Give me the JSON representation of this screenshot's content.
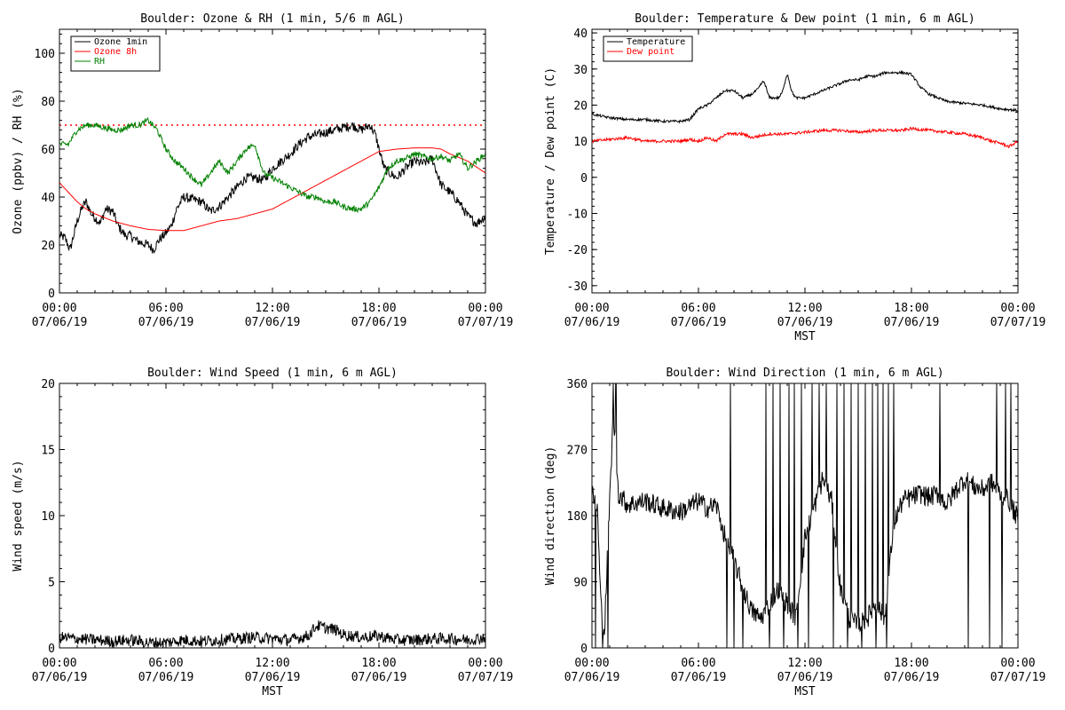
{
  "chart_data": [
    {
      "type": "line",
      "title": "Boulder: Ozone & RH (1 min, 5/6 m AGL)",
      "ylabel": "Ozone (ppbv) / RH (%)",
      "xlabel": "",
      "ylim": [
        0,
        110
      ],
      "yticks": [
        0,
        20,
        40,
        60,
        80,
        100
      ],
      "x_tick_labels": [
        {
          "time": "00:00",
          "date": "07/06/19"
        },
        {
          "time": "06:00",
          "date": "07/06/19"
        },
        {
          "time": "12:00",
          "date": "07/06/19"
        },
        {
          "time": "18:00",
          "date": "07/06/19"
        },
        {
          "time": "00:00",
          "date": "07/07/19"
        }
      ],
      "x_unit": "hours",
      "xlim": [
        0,
        24
      ],
      "legend": {
        "placement": "top-left",
        "boxed": true
      },
      "reference_lines": [
        {
          "y": 70,
          "color": "#ff0000",
          "style": "dotted"
        }
      ],
      "series": [
        {
          "name": "Ozone 1min",
          "color": "#000000",
          "noise": 2.0,
          "x": [
            0,
            0.3,
            0.6,
            1.0,
            1.3,
            1.5,
            1.8,
            2.3,
            2.6,
            3.0,
            3.3,
            3.7,
            4.0,
            4.3,
            4.6,
            5.0,
            5.3,
            5.6,
            6.0,
            6.3,
            6.6,
            7.0,
            7.5,
            8.0,
            8.5,
            9.0,
            9.5,
            10,
            10.5,
            11,
            11.5,
            12,
            12.5,
            13,
            13.5,
            14,
            14.5,
            15,
            15.5,
            16,
            16.5,
            17,
            17.5,
            17.8,
            18.0,
            18.3,
            18.6,
            19,
            19.5,
            20,
            20.5,
            21,
            21.5,
            22,
            22.5,
            23,
            23.5,
            24
          ],
          "y": [
            24,
            23,
            18,
            30,
            36,
            38,
            33,
            29,
            35,
            34,
            28,
            24,
            24,
            22,
            21,
            20,
            18,
            22,
            25,
            28,
            35,
            40,
            39,
            38,
            34,
            36,
            40,
            44,
            48,
            48,
            47,
            52,
            55,
            58,
            62,
            65,
            66,
            67,
            68,
            69,
            70,
            68,
            70,
            66,
            60,
            52,
            50,
            48,
            52,
            55,
            54,
            56,
            45,
            42,
            38,
            32,
            29,
            32
          ]
        },
        {
          "name": "Ozone 8h",
          "color": "#ff0000",
          "noise": 0,
          "x": [
            0,
            0.5,
            1,
            1.5,
            2,
            3,
            4,
            5,
            6,
            7,
            8,
            9,
            10,
            11,
            12,
            13,
            14,
            15,
            16,
            17,
            18,
            19,
            20,
            21,
            21.5,
            22,
            23,
            24
          ],
          "y": [
            46,
            42,
            38,
            35,
            33,
            30,
            28,
            26.5,
            26,
            26,
            28,
            30,
            31,
            33,
            35,
            39,
            43,
            47,
            51,
            55,
            59,
            60,
            60.5,
            60.5,
            60,
            58,
            55,
            50
          ]
        },
        {
          "name": "RH",
          "color": "#008000",
          "noise": 1.2,
          "x": [
            0,
            0.5,
            1,
            1.5,
            2,
            2.5,
            3,
            3.5,
            4,
            4.5,
            5,
            5.5,
            6,
            6.5,
            7,
            7.5,
            8,
            8.5,
            9,
            9.5,
            10,
            10.5,
            11,
            11.5,
            12,
            12.5,
            13,
            13.5,
            14,
            14.5,
            15,
            15.5,
            16,
            16.5,
            17,
            17.5,
            18,
            18.5,
            19,
            19.5,
            20,
            20.5,
            21,
            21.5,
            22,
            22.5,
            23,
            23.5,
            24
          ],
          "y": [
            62,
            62,
            68,
            70,
            70,
            69,
            68,
            68,
            70,
            70,
            72,
            68,
            60,
            55,
            52,
            48,
            45,
            50,
            55,
            50,
            55,
            60,
            62,
            50,
            48,
            46,
            44,
            42,
            40,
            40,
            38,
            38,
            36,
            35,
            35,
            38,
            44,
            52,
            55,
            56,
            58,
            57,
            56,
            57,
            55,
            58,
            52,
            55,
            58
          ]
        }
      ]
    },
    {
      "type": "line",
      "title": "Boulder: Temperature & Dew point (1 min, 6 m AGL)",
      "ylabel": "Temperature / Dew point (C)",
      "xlabel": "MST",
      "ylim": [
        -32,
        41
      ],
      "yticks": [
        -30,
        -20,
        -10,
        0,
        10,
        20,
        30,
        40
      ],
      "x_tick_labels": [
        {
          "time": "00:00",
          "date": "07/06/19"
        },
        {
          "time": "06:00",
          "date": "07/06/19"
        },
        {
          "time": "12:00",
          "date": "07/06/19"
        },
        {
          "time": "18:00",
          "date": "07/06/19"
        },
        {
          "time": "00:00",
          "date": "07/07/19"
        }
      ],
      "x_unit": "hours",
      "xlim": [
        0,
        24
      ],
      "legend": {
        "placement": "top-left",
        "boxed": true
      },
      "series": [
        {
          "name": "Temperature",
          "color": "#000000",
          "noise": 0.35,
          "x": [
            0,
            1,
            2,
            3,
            4,
            5,
            5.5,
            6,
            6.5,
            7,
            7.5,
            8,
            8.5,
            9,
            9.5,
            10,
            10.5,
            11,
            11.5,
            12,
            12.5,
            13,
            13.5,
            14,
            14.5,
            15,
            15.5,
            16,
            16.5,
            17,
            17.5,
            18,
            18.5,
            19,
            19.5,
            20,
            21,
            22,
            23,
            24
          ],
          "y": [
            17.5,
            16.5,
            16,
            16,
            15.5,
            15.5,
            16,
            19,
            20,
            22,
            24,
            24,
            22,
            23,
            25,
            22,
            22,
            25,
            22,
            22,
            23,
            24,
            25,
            26,
            27,
            27,
            28,
            28,
            29,
            29,
            29,
            28.5,
            25,
            23,
            22,
            21,
            20.5,
            20,
            19,
            18.5
          ],
          "bumps": [
            {
              "x": 9.7,
              "dy": 2.5
            },
            {
              "x": 11.0,
              "dy": 3.5
            }
          ]
        },
        {
          "name": "Dew point",
          "color": "#ff0000",
          "noise": 0.4,
          "x": [
            0,
            1,
            2,
            3,
            4,
            5,
            5.5,
            6,
            6.5,
            7,
            7.5,
            8,
            8.5,
            9,
            10,
            11,
            12,
            13,
            14,
            15,
            16,
            17,
            17.5,
            18,
            19,
            20,
            21,
            22,
            22.5,
            23,
            23.5,
            24
          ],
          "y": [
            10,
            10.5,
            11,
            10,
            10,
            10,
            10.5,
            10,
            11,
            10,
            12,
            12,
            12,
            11,
            12,
            12,
            12.5,
            13,
            13,
            12.5,
            13,
            13,
            13,
            13.5,
            13,
            12.5,
            12,
            11,
            10,
            9.5,
            8.5,
            10
          ]
        }
      ]
    },
    {
      "type": "line",
      "title": "Boulder: Wind Speed (1 min, 6 m AGL)",
      "ylabel": "Wind speed (m/s)",
      "xlabel": "MST",
      "ylim": [
        0,
        20
      ],
      "yticks": [
        0,
        5,
        10,
        15,
        20
      ],
      "x_tick_labels": [
        {
          "time": "00:00",
          "date": "07/06/19"
        },
        {
          "time": "06:00",
          "date": "07/06/19"
        },
        {
          "time": "12:00",
          "date": "07/06/19"
        },
        {
          "time": "18:00",
          "date": "07/06/19"
        },
        {
          "time": "00:00",
          "date": "07/07/19"
        }
      ],
      "x_unit": "hours",
      "xlim": [
        0,
        24
      ],
      "series": [
        {
          "name": "",
          "color": "#000000",
          "noise": 0.45,
          "floor": 0,
          "x": [
            0,
            1,
            2,
            3,
            4,
            5,
            6,
            7,
            8,
            9,
            10,
            11,
            12,
            13,
            14,
            14.5,
            15,
            15.5,
            16,
            17,
            18,
            19,
            20,
            21,
            22,
            23,
            24
          ],
          "y": [
            0.8,
            0.7,
            0.6,
            0.5,
            0.6,
            0.4,
            0.4,
            0.6,
            0.5,
            0.6,
            0.7,
            0.8,
            0.7,
            0.6,
            0.9,
            1.7,
            1.5,
            1.4,
            1.0,
            0.8,
            0.9,
            0.6,
            0.6,
            0.7,
            0.7,
            0.6,
            0.8
          ]
        }
      ]
    },
    {
      "type": "line",
      "title": "Boulder: Wind Direction (1 min, 6 m AGL)",
      "ylabel": "Wind direction (deg)",
      "xlabel": "MST",
      "ylim": [
        0,
        360
      ],
      "yticks": [
        0,
        90,
        180,
        270,
        360
      ],
      "x_tick_labels": [
        {
          "time": "00:00",
          "date": "07/06/19"
        },
        {
          "time": "06:00",
          "date": "07/06/19"
        },
        {
          "time": "12:00",
          "date": "07/06/19"
        },
        {
          "time": "18:00",
          "date": "07/06/19"
        },
        {
          "time": "00:00",
          "date": "07/07/19"
        }
      ],
      "x_unit": "hours",
      "xlim": [
        0,
        24
      ],
      "series": [
        {
          "name": "",
          "color": "#000000",
          "noise": 14,
          "floor": 0,
          "ceiling": 360,
          "x": [
            0,
            0.3,
            0.5,
            0.7,
            1.0,
            1.2,
            1.5,
            2,
            3,
            4,
            5,
            6,
            6.5,
            7,
            7.5,
            8,
            8.5,
            9,
            9.5,
            10,
            10.5,
            11,
            11.5,
            12,
            12.5,
            13,
            13.5,
            14,
            14.5,
            15,
            15.5,
            16,
            16.5,
            17,
            17.5,
            18,
            18.5,
            19,
            19.5,
            20,
            20.5,
            21,
            21.5,
            22,
            22.5,
            23,
            23.5,
            24
          ],
          "y": [
            210,
            190,
            60,
            20,
            200,
            320,
            210,
            195,
            200,
            190,
            185,
            200,
            190,
            195,
            150,
            120,
            80,
            50,
            40,
            60,
            80,
            60,
            40,
            150,
            190,
            230,
            200,
            80,
            40,
            30,
            40,
            60,
            40,
            170,
            200,
            205,
            210,
            205,
            210,
            195,
            215,
            230,
            220,
            215,
            225,
            210,
            200,
            175
          ],
          "spikes_to_360": [
            1.2,
            1.35,
            7.8,
            9.8,
            10.2,
            10.6,
            11.1,
            11.4,
            11.8,
            12.4,
            12.8,
            13.2,
            13.8,
            14.2,
            14.6,
            15.0,
            15.4,
            15.8,
            16.1,
            16.4,
            16.7,
            17.0,
            19.6,
            22.8,
            23.3,
            23.6
          ],
          "spikes_to_0": [
            0.2,
            0.6,
            0.9,
            7.6,
            8.0,
            8.5,
            10.0,
            10.8,
            11.6,
            12.2,
            13.6,
            14.4,
            15.2,
            16.0,
            16.6,
            21.2,
            22.4,
            23.1
          ]
        }
      ]
    }
  ]
}
